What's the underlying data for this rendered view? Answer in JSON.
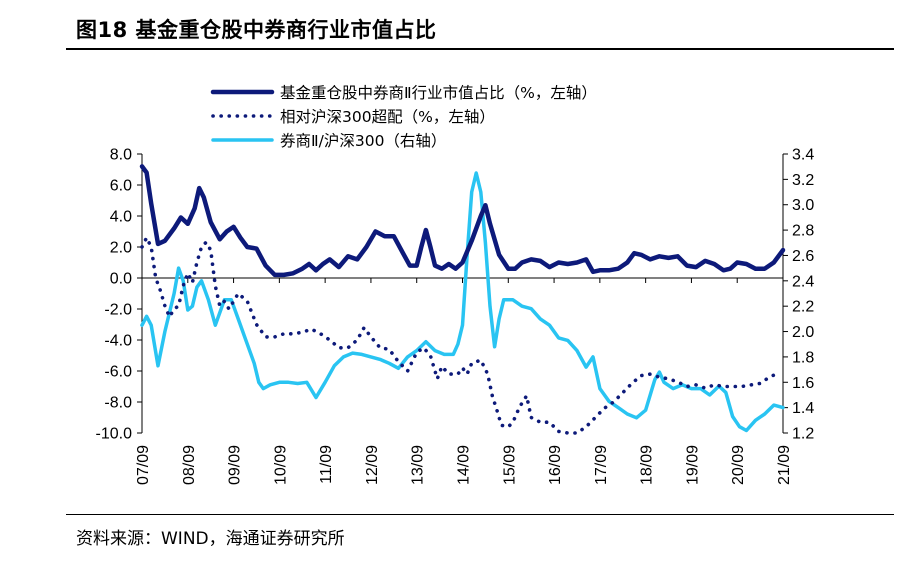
{
  "title": "图18 基金重仓股中券商行业市值占比",
  "source": "资料来源：WIND，海通证券研究所",
  "colors": {
    "navy": "#0d1a7a",
    "cyan": "#29c4f2",
    "axis": "#000000",
    "background": "#ffffff"
  },
  "chart_data": {
    "type": "line",
    "legend_placement": "top",
    "grid": false,
    "x_labels": [
      "07/09",
      "08/09",
      "09/09",
      "10/09",
      "11/09",
      "12/09",
      "13/09",
      "14/09",
      "15/09",
      "16/09",
      "17/09",
      "18/09",
      "19/09",
      "20/09",
      "21/09"
    ],
    "left_axis": {
      "min": -10,
      "max": 8,
      "ticks": [
        "8.0",
        "6.0",
        "4.0",
        "2.0",
        "0.0",
        "-2.0",
        "-4.0",
        "-6.0",
        "-8.0",
        "-10.0"
      ]
    },
    "right_axis": {
      "min": 1.2,
      "max": 3.4,
      "ticks": [
        "3.4",
        "3.2",
        "3.0",
        "2.8",
        "2.6",
        "2.4",
        "2.2",
        "2.0",
        "1.8",
        "1.6",
        "1.4",
        "1.2"
      ]
    },
    "series": [
      {
        "name": "基金重仓股中券商Ⅱ行业市值占比（%，左轴）",
        "axis": "left",
        "style": "solid-thick",
        "color": "#0d1a7a",
        "points": [
          [
            0.0,
            7.2
          ],
          [
            0.1,
            6.8
          ],
          [
            0.2,
            4.8
          ],
          [
            0.35,
            2.2
          ],
          [
            0.5,
            2.4
          ],
          [
            0.7,
            3.2
          ],
          [
            0.85,
            3.9
          ],
          [
            1.0,
            3.5
          ],
          [
            1.15,
            4.5
          ],
          [
            1.25,
            5.8
          ],
          [
            1.35,
            5.2
          ],
          [
            1.5,
            3.6
          ],
          [
            1.7,
            2.5
          ],
          [
            1.85,
            3.0
          ],
          [
            2.0,
            3.3
          ],
          [
            2.15,
            2.6
          ],
          [
            2.3,
            2.0
          ],
          [
            2.5,
            1.9
          ],
          [
            2.7,
            0.8
          ],
          [
            2.9,
            0.2
          ],
          [
            3.1,
            0.2
          ],
          [
            3.3,
            0.3
          ],
          [
            3.5,
            0.6
          ],
          [
            3.65,
            0.9
          ],
          [
            3.8,
            0.5
          ],
          [
            3.95,
            0.9
          ],
          [
            4.1,
            1.2
          ],
          [
            4.3,
            0.7
          ],
          [
            4.5,
            1.4
          ],
          [
            4.7,
            1.2
          ],
          [
            4.9,
            2.0
          ],
          [
            5.1,
            3.0
          ],
          [
            5.3,
            2.7
          ],
          [
            5.5,
            2.7
          ],
          [
            5.7,
            1.6
          ],
          [
            5.85,
            0.8
          ],
          [
            6.0,
            0.8
          ],
          [
            6.1,
            2.0
          ],
          [
            6.2,
            3.1
          ],
          [
            6.3,
            2.0
          ],
          [
            6.4,
            0.8
          ],
          [
            6.55,
            0.6
          ],
          [
            6.7,
            0.9
          ],
          [
            6.85,
            0.6
          ],
          [
            7.0,
            1.0
          ],
          [
            7.2,
            2.4
          ],
          [
            7.4,
            4.0
          ],
          [
            7.5,
            4.7
          ],
          [
            7.6,
            3.5
          ],
          [
            7.8,
            1.5
          ],
          [
            8.0,
            0.6
          ],
          [
            8.15,
            0.6
          ],
          [
            8.3,
            1.0
          ],
          [
            8.5,
            1.2
          ],
          [
            8.7,
            1.1
          ],
          [
            8.9,
            0.7
          ],
          [
            9.1,
            1.0
          ],
          [
            9.3,
            0.9
          ],
          [
            9.5,
            1.0
          ],
          [
            9.7,
            1.2
          ],
          [
            9.85,
            0.4
          ],
          [
            10.0,
            0.5
          ],
          [
            10.2,
            0.5
          ],
          [
            10.4,
            0.6
          ],
          [
            10.6,
            1.0
          ],
          [
            10.75,
            1.6
          ],
          [
            10.9,
            1.5
          ],
          [
            11.1,
            1.2
          ],
          [
            11.3,
            1.4
          ],
          [
            11.5,
            1.3
          ],
          [
            11.7,
            1.4
          ],
          [
            11.9,
            0.8
          ],
          [
            12.1,
            0.7
          ],
          [
            12.3,
            1.1
          ],
          [
            12.5,
            0.9
          ],
          [
            12.7,
            0.5
          ],
          [
            12.85,
            0.6
          ],
          [
            13.0,
            1.0
          ],
          [
            13.2,
            0.9
          ],
          [
            13.4,
            0.6
          ],
          [
            13.6,
            0.6
          ],
          [
            13.8,
            1.0
          ],
          [
            14.0,
            1.8
          ]
        ]
      },
      {
        "name": "相对沪深300超配（%，左轴）",
        "axis": "left",
        "style": "dotted",
        "color": "#0d1a7a",
        "points": [
          [
            0.0,
            2.0
          ],
          [
            0.1,
            2.6
          ],
          [
            0.2,
            2.0
          ],
          [
            0.3,
            0.0
          ],
          [
            0.4,
            -0.8
          ],
          [
            0.5,
            -1.8
          ],
          [
            0.6,
            -2.5
          ],
          [
            0.7,
            -2.0
          ],
          [
            0.8,
            -1.8
          ],
          [
            0.9,
            -0.5
          ],
          [
            1.0,
            0.3
          ],
          [
            1.1,
            -0.3
          ],
          [
            1.2,
            1.0
          ],
          [
            1.3,
            2.0
          ],
          [
            1.4,
            2.3
          ],
          [
            1.5,
            1.8
          ],
          [
            1.6,
            -0.5
          ],
          [
            1.7,
            -1.8
          ],
          [
            1.8,
            -1.5
          ],
          [
            1.9,
            -2.0
          ],
          [
            2.0,
            -1.5
          ],
          [
            2.1,
            -1.0
          ],
          [
            2.3,
            -1.5
          ],
          [
            2.5,
            -3.0
          ],
          [
            2.7,
            -3.8
          ],
          [
            2.9,
            -3.8
          ],
          [
            3.1,
            -3.6
          ],
          [
            3.3,
            -3.6
          ],
          [
            3.5,
            -3.5
          ],
          [
            3.7,
            -3.3
          ],
          [
            3.9,
            -3.6
          ],
          [
            4.1,
            -4.0
          ],
          [
            4.3,
            -4.5
          ],
          [
            4.5,
            -4.5
          ],
          [
            4.7,
            -4.0
          ],
          [
            4.85,
            -3.2
          ],
          [
            5.0,
            -3.8
          ],
          [
            5.2,
            -4.5
          ],
          [
            5.4,
            -4.6
          ],
          [
            5.6,
            -5.4
          ],
          [
            5.8,
            -6.0
          ],
          [
            6.0,
            -4.8
          ],
          [
            6.15,
            -4.5
          ],
          [
            6.3,
            -5.0
          ],
          [
            6.45,
            -6.5
          ],
          [
            6.55,
            -5.7
          ],
          [
            6.7,
            -6.2
          ],
          [
            6.9,
            -6.2
          ],
          [
            7.0,
            -5.8
          ],
          [
            7.1,
            -6.2
          ],
          [
            7.2,
            -5.5
          ],
          [
            7.4,
            -5.3
          ],
          [
            7.55,
            -6.2
          ],
          [
            7.65,
            -7.6
          ],
          [
            7.75,
            -8.5
          ],
          [
            7.85,
            -9.5
          ],
          [
            8.0,
            -9.6
          ],
          [
            8.1,
            -9.3
          ],
          [
            8.25,
            -8.3
          ],
          [
            8.4,
            -7.6
          ],
          [
            8.5,
            -9.0
          ],
          [
            8.7,
            -9.3
          ],
          [
            8.9,
            -9.3
          ],
          [
            9.1,
            -9.9
          ],
          [
            9.3,
            -10.0
          ],
          [
            9.5,
            -10.0
          ],
          [
            9.7,
            -9.6
          ],
          [
            9.9,
            -9.0
          ],
          [
            10.1,
            -8.4
          ],
          [
            10.3,
            -8.0
          ],
          [
            10.5,
            -7.4
          ],
          [
            10.7,
            -6.8
          ],
          [
            10.9,
            -6.3
          ],
          [
            11.1,
            -6.2
          ],
          [
            11.3,
            -6.4
          ],
          [
            11.5,
            -6.5
          ],
          [
            11.7,
            -6.7
          ],
          [
            11.9,
            -7.0
          ],
          [
            12.1,
            -6.9
          ],
          [
            12.3,
            -7.1
          ],
          [
            12.5,
            -6.9
          ],
          [
            12.7,
            -7.0
          ],
          [
            12.9,
            -7.0
          ],
          [
            13.1,
            -7.0
          ],
          [
            13.3,
            -6.9
          ],
          [
            13.5,
            -6.8
          ],
          [
            13.7,
            -6.4
          ],
          [
            13.85,
            -6.2
          ]
        ]
      },
      {
        "name": "券商Ⅱ/沪深300（右轴）",
        "axis": "right",
        "style": "solid",
        "color": "#29c4f2",
        "points": [
          [
            0.0,
            2.05
          ],
          [
            0.1,
            2.12
          ],
          [
            0.2,
            2.05
          ],
          [
            0.35,
            1.73
          ],
          [
            0.5,
            2.0
          ],
          [
            0.7,
            2.3
          ],
          [
            0.8,
            2.5
          ],
          [
            0.9,
            2.4
          ],
          [
            1.0,
            2.17
          ],
          [
            1.1,
            2.2
          ],
          [
            1.2,
            2.35
          ],
          [
            1.3,
            2.4
          ],
          [
            1.45,
            2.25
          ],
          [
            1.6,
            2.05
          ],
          [
            1.8,
            2.25
          ],
          [
            1.95,
            2.25
          ],
          [
            2.1,
            2.1
          ],
          [
            2.3,
            1.9
          ],
          [
            2.45,
            1.75
          ],
          [
            2.55,
            1.6
          ],
          [
            2.65,
            1.55
          ],
          [
            2.8,
            1.58
          ],
          [
            3.0,
            1.6
          ],
          [
            3.2,
            1.6
          ],
          [
            3.4,
            1.59
          ],
          [
            3.6,
            1.6
          ],
          [
            3.8,
            1.48
          ],
          [
            4.0,
            1.6
          ],
          [
            4.2,
            1.73
          ],
          [
            4.4,
            1.8
          ],
          [
            4.6,
            1.83
          ],
          [
            4.8,
            1.82
          ],
          [
            5.0,
            1.8
          ],
          [
            5.2,
            1.78
          ],
          [
            5.4,
            1.75
          ],
          [
            5.6,
            1.71
          ],
          [
            5.8,
            1.8
          ],
          [
            6.0,
            1.85
          ],
          [
            6.2,
            1.92
          ],
          [
            6.4,
            1.85
          ],
          [
            6.6,
            1.82
          ],
          [
            6.8,
            1.82
          ],
          [
            6.9,
            1.9
          ],
          [
            7.0,
            2.05
          ],
          [
            7.1,
            2.6
          ],
          [
            7.2,
            3.1
          ],
          [
            7.3,
            3.25
          ],
          [
            7.4,
            3.1
          ],
          [
            7.5,
            2.7
          ],
          [
            7.6,
            2.2
          ],
          [
            7.7,
            1.88
          ],
          [
            7.8,
            2.1
          ],
          [
            7.9,
            2.25
          ],
          [
            8.1,
            2.25
          ],
          [
            8.3,
            2.2
          ],
          [
            8.5,
            2.18
          ],
          [
            8.7,
            2.1
          ],
          [
            8.9,
            2.05
          ],
          [
            9.1,
            1.95
          ],
          [
            9.3,
            1.93
          ],
          [
            9.5,
            1.85
          ],
          [
            9.7,
            1.72
          ],
          [
            9.85,
            1.8
          ],
          [
            10.0,
            1.55
          ],
          [
            10.2,
            1.45
          ],
          [
            10.4,
            1.4
          ],
          [
            10.6,
            1.35
          ],
          [
            10.8,
            1.32
          ],
          [
            11.0,
            1.38
          ],
          [
            11.2,
            1.62
          ],
          [
            11.3,
            1.68
          ],
          [
            11.4,
            1.6
          ],
          [
            11.6,
            1.55
          ],
          [
            11.8,
            1.58
          ],
          [
            12.0,
            1.55
          ],
          [
            12.2,
            1.55
          ],
          [
            12.4,
            1.5
          ],
          [
            12.6,
            1.57
          ],
          [
            12.75,
            1.52
          ],
          [
            12.9,
            1.33
          ],
          [
            13.05,
            1.25
          ],
          [
            13.2,
            1.22
          ],
          [
            13.4,
            1.3
          ],
          [
            13.6,
            1.35
          ],
          [
            13.8,
            1.42
          ],
          [
            14.0,
            1.4
          ]
        ]
      }
    ]
  }
}
